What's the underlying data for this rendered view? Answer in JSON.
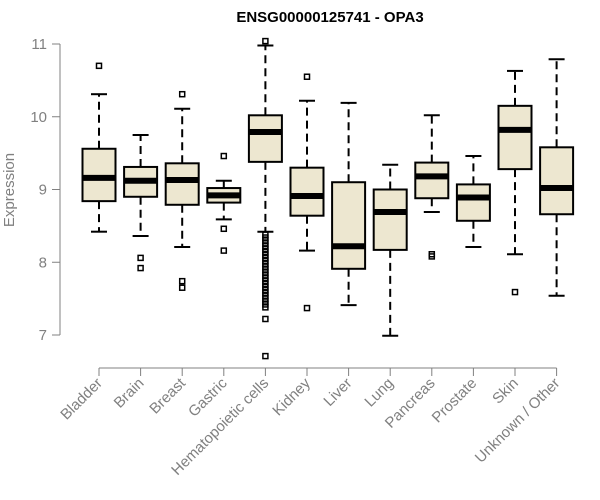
{
  "chart_data": {
    "type": "boxplot",
    "title": "ENSG00000125741 - OPA3",
    "xlabel": "",
    "ylabel": "Expression",
    "ylim": [
      7,
      11
    ],
    "yticks": [
      "7",
      "8",
      "9",
      "10",
      "11"
    ],
    "grid": false,
    "legend": "none",
    "colors": {
      "box_fill": "#ede7d0",
      "stroke": "#000000",
      "axis": "#808080"
    },
    "categories": [
      "Bladder",
      "Brain",
      "Breast",
      "Gastric",
      "Hematopoietic cells",
      "Kidney",
      "Liver",
      "Lung",
      "Pancreas",
      "Prostate",
      "Skin",
      "Unknown / Other"
    ],
    "boxes": [
      {
        "name": "Bladder",
        "lower_whisker": 8.42,
        "q1": 8.84,
        "median": 9.16,
        "q3": 9.56,
        "upper_whisker": 10.31,
        "outliers": [
          10.7
        ]
      },
      {
        "name": "Brain",
        "lower_whisker": 8.36,
        "q1": 8.9,
        "median": 9.12,
        "q3": 9.31,
        "upper_whisker": 9.75,
        "outliers": [
          8.06,
          7.92
        ]
      },
      {
        "name": "Breast",
        "lower_whisker": 8.21,
        "q1": 8.79,
        "median": 9.13,
        "q3": 9.36,
        "upper_whisker": 10.11,
        "outliers": [
          10.31,
          7.74,
          7.65
        ]
      },
      {
        "name": "Gastric",
        "lower_whisker": 8.59,
        "q1": 8.82,
        "median": 8.92,
        "q3": 9.02,
        "upper_whisker": 9.12,
        "outliers": [
          9.46,
          8.46,
          8.16
        ]
      },
      {
        "name": "Hematopoietic cells",
        "lower_whisker": 8.42,
        "q1": 9.38,
        "median": 9.79,
        "q3": 10.02,
        "upper_whisker": 10.98,
        "outliers": [
          11.04,
          8.38,
          8.34,
          8.3,
          8.26,
          8.22,
          8.18,
          8.14,
          8.1,
          8.06,
          8.02,
          7.98,
          7.94,
          7.9,
          7.86,
          7.82,
          7.78,
          7.74,
          7.7,
          7.66,
          7.62,
          7.58,
          7.54,
          7.5,
          7.46,
          7.42,
          7.38,
          7.22,
          6.71
        ]
      },
      {
        "name": "Kidney",
        "lower_whisker": 8.16,
        "q1": 8.64,
        "median": 8.91,
        "q3": 9.3,
        "upper_whisker": 10.22,
        "outliers": [
          10.55,
          7.37
        ]
      },
      {
        "name": "Liver",
        "lower_whisker": 7.41,
        "q1": 7.91,
        "median": 8.22,
        "q3": 9.1,
        "upper_whisker": 10.19,
        "outliers": []
      },
      {
        "name": "Lung",
        "lower_whisker": 6.99,
        "q1": 8.17,
        "median": 8.69,
        "q3": 9.0,
        "upper_whisker": 9.34,
        "outliers": []
      },
      {
        "name": "Pancreas",
        "lower_whisker": 8.69,
        "q1": 8.88,
        "median": 9.18,
        "q3": 9.37,
        "upper_whisker": 10.02,
        "outliers": [
          8.11,
          8.08
        ]
      },
      {
        "name": "Prostate",
        "lower_whisker": 8.21,
        "q1": 8.57,
        "median": 8.89,
        "q3": 9.07,
        "upper_whisker": 9.46,
        "outliers": []
      },
      {
        "name": "Skin",
        "lower_whisker": 8.11,
        "q1": 9.28,
        "median": 9.82,
        "q3": 10.15,
        "upper_whisker": 10.63,
        "outliers": [
          7.59
        ]
      },
      {
        "name": "Unknown / Other",
        "lower_whisker": 7.54,
        "q1": 8.66,
        "median": 9.02,
        "q3": 9.58,
        "upper_whisker": 10.79,
        "outliers": []
      }
    ]
  }
}
